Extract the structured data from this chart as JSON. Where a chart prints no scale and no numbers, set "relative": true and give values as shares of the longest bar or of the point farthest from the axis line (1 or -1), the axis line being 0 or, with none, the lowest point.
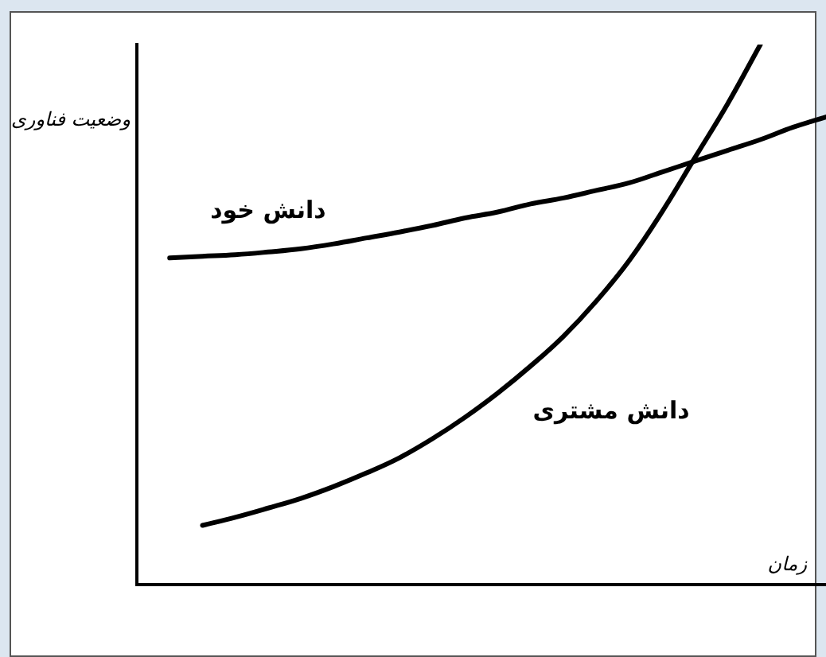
{
  "chart_data": {
    "type": "line",
    "relative": true,
    "xlabel": "زمان",
    "ylabel": "وضعیت فناوری",
    "legend": false,
    "categories": [
      null,
      null,
      null,
      null,
      null,
      null,
      null,
      null,
      null,
      null,
      null,
      null,
      null,
      null,
      null,
      null,
      null,
      null,
      null,
      null,
      null,
      null
    ],
    "series": [
      {
        "name": "دانش خود",
        "color": "#000000",
        "values": [
          null,
          0.605,
          0.608,
          0.611,
          0.616,
          0.622,
          0.631,
          0.642,
          0.653,
          0.665,
          0.679,
          0.69,
          0.705,
          0.716,
          0.73,
          0.744,
          0.764,
          0.784,
          0.804,
          0.824,
          0.847,
          0.866
        ]
      },
      {
        "name": "دانش مشتری",
        "color": "#000000",
        "values": [
          null,
          null,
          0.11,
          0.125,
          0.142,
          0.16,
          0.182,
          0.207,
          0.235,
          0.27,
          0.31,
          0.355,
          0.405,
          0.46,
          0.525,
          0.6,
          0.69,
          0.79,
          0.89,
          1,
          null,
          null
        ]
      }
    ]
  }
}
